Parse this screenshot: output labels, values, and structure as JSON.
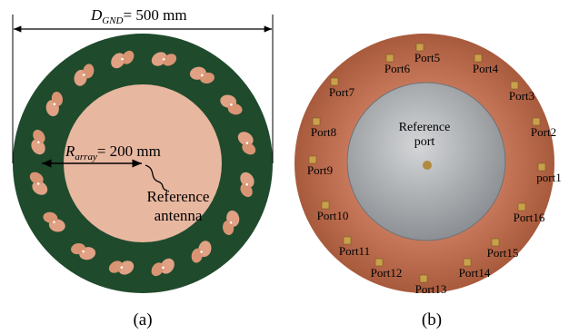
{
  "panel_a": {
    "dimension": {
      "symbol": "D",
      "subscript": "GND",
      "value_text": "= 500 mm"
    },
    "radius": {
      "symbol": "R",
      "subscript": "array",
      "value_text": "= 200 mm"
    },
    "annotation_lines": [
      "Reference",
      "antenna"
    ],
    "caption": "(a)"
  },
  "panel_b": {
    "annotation_lines": [
      "Reference",
      "port"
    ],
    "ports": [
      "port1",
      "Port2",
      "Port3",
      "Port4",
      "Port5",
      "Port6",
      "Port7",
      "Port8",
      "Port9",
      "Port10",
      "Port11",
      "Port12",
      "Port13",
      "Port14",
      "Port15",
      "Port16"
    ],
    "caption": "(b)"
  }
}
